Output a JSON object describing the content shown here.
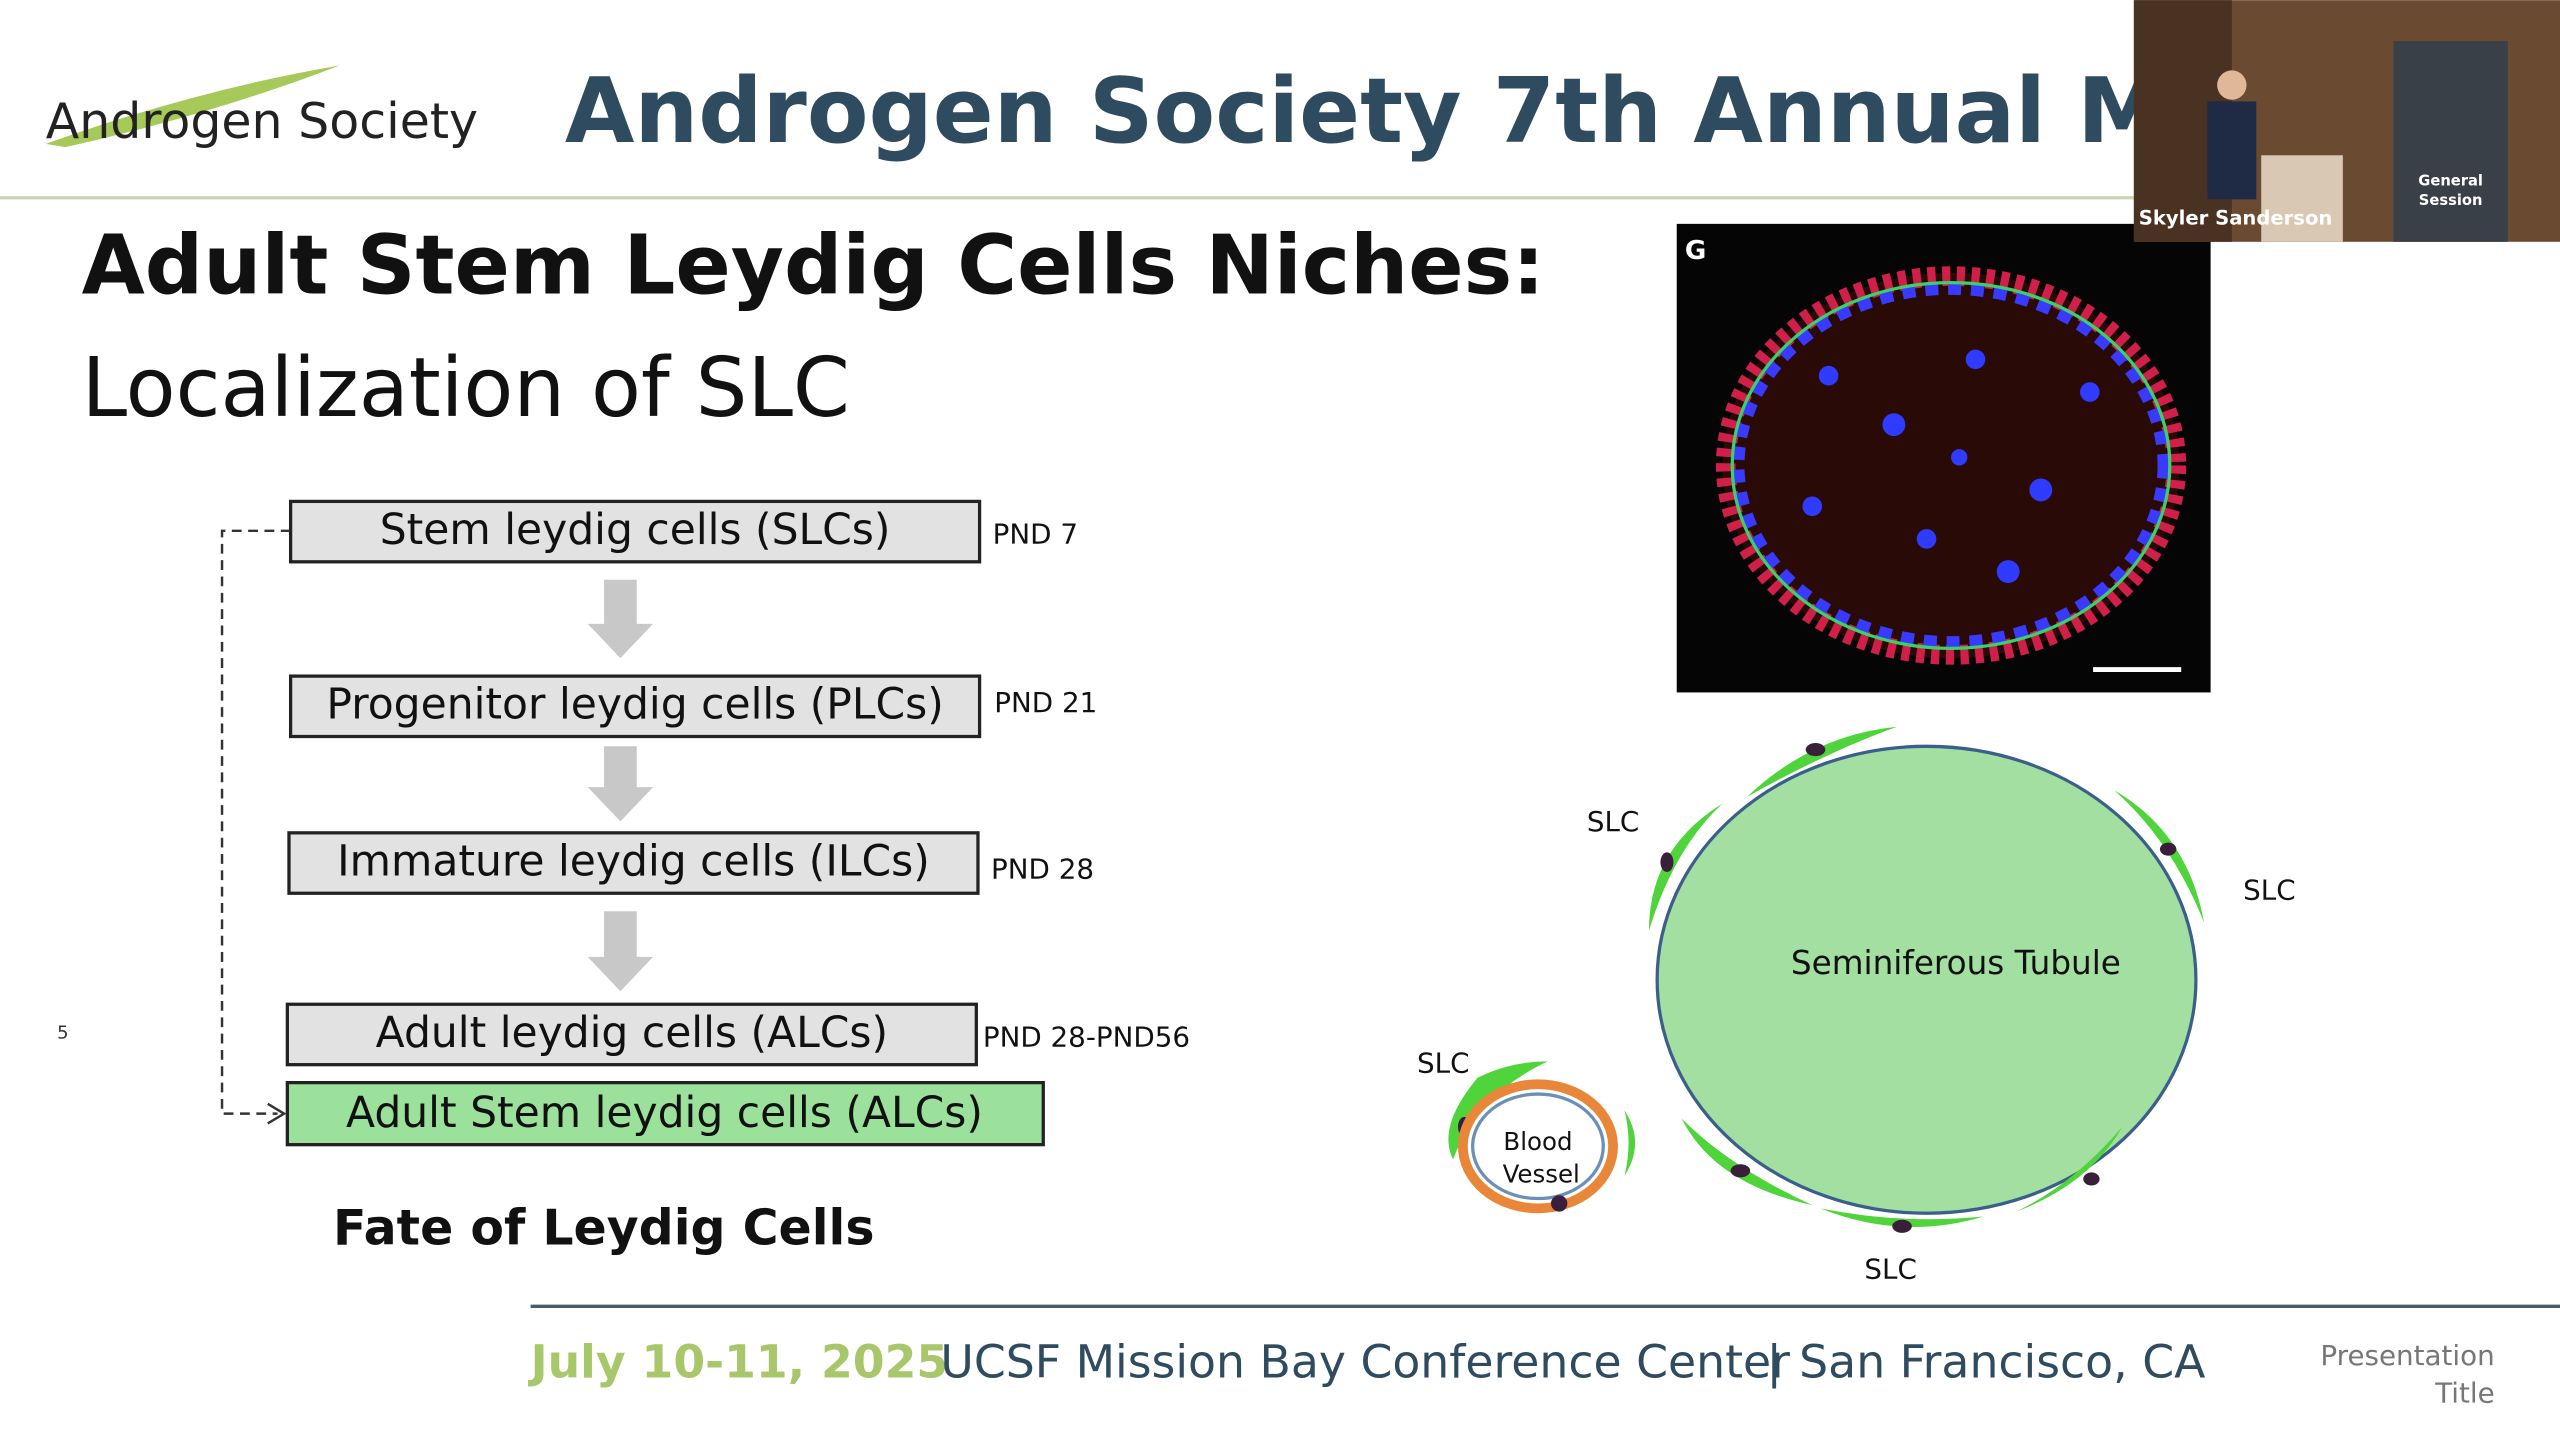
{
  "header": {
    "logo": "Androgen Society",
    "title": "Androgen Society 7th Annual Me"
  },
  "slide": {
    "title": "Adult Stem Leydig Cells Niches:",
    "subtitle": "Localization of  SLC",
    "page_number": "5"
  },
  "flow": {
    "steps": [
      {
        "label": "Stem leydig cells (SLCs)",
        "stage": "PND 7"
      },
      {
        "label": "Progenitor leydig cells (PLCs)",
        "stage": "PND 21"
      },
      {
        "label": "Immature leydig cells (ILCs)",
        "stage": "PND 28"
      },
      {
        "label": "Adult leydig cells (ALCs)",
        "stage": "PND 28-PND56"
      },
      {
        "label": "Adult Stem leydig cells (ALCs)"
      }
    ],
    "caption": "Fate of Leydig Cells"
  },
  "micrograph": {
    "panel": "G"
  },
  "diagram": {
    "tubule": "Seminiferous Tubule",
    "slc_labels": [
      "SLC",
      "SLC",
      "SLC",
      "SLC"
    ],
    "vessel": [
      "Blood",
      "Vessel"
    ]
  },
  "footer": {
    "date": "July 10-11, 2025",
    "venue": "UCSF Mission Bay Conference Center",
    "separator": "|",
    "city": "San Francisco, CA",
    "note": [
      "Presentation",
      "Title"
    ]
  },
  "video": {
    "speaker": "Skyler Sanderson",
    "banner": [
      "General",
      "Session"
    ]
  }
}
